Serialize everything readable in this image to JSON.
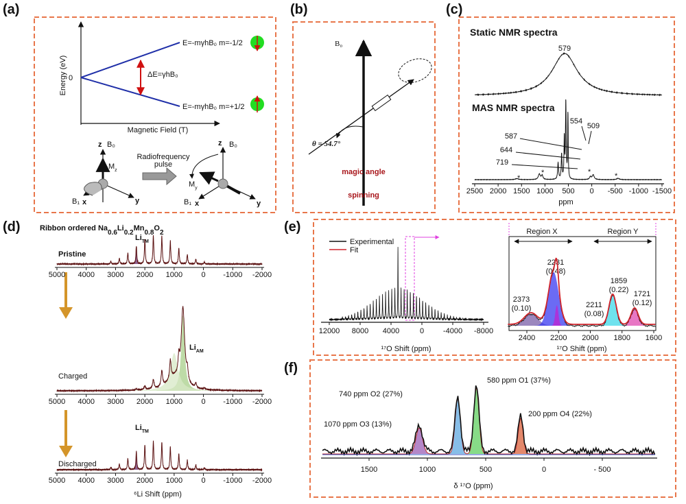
{
  "a": {
    "label": "(a)",
    "energy_axis": "Energy (eV)",
    "zero": "0",
    "field_axis": "Magnetic Field (T)",
    "upper_level": "E=-mγhB₀  m=-1/2",
    "lower_level": "E=-mγhB₀  m=+1/2",
    "gap": "ΔE=γhB₀",
    "pulse": [
      "Radiofrequency",
      "pulse"
    ],
    "before": {
      "z": "z",
      "b0": "B₀",
      "m": [
        "M",
        "z"
      ],
      "b1": "B₁",
      "x": "x",
      "y": "y"
    },
    "after": {
      "z": "z",
      "b0": "B₀",
      "m": [
        "M",
        "y"
      ],
      "b1": "B₁",
      "x": "x",
      "y": "y"
    }
  },
  "b": {
    "label": "(b)",
    "field": "B₀",
    "angle": "θ = 54.7°",
    "caption": [
      "magic angle",
      "spinning"
    ]
  },
  "c": {
    "label": "(c)",
    "static_title": "Static NMR spectra",
    "static_peak": "579",
    "mas_title": "MAS NMR spectra",
    "mas_peaks": [
      "554",
      "509",
      "587",
      "644",
      "719"
    ],
    "sidebands": [
      "*",
      "*",
      "*",
      "*"
    ],
    "ticks": [
      "2500",
      "2000",
      "1500",
      "1000",
      "500",
      "0",
      "-500",
      "-1000",
      "-1500"
    ],
    "axis_label": "ppm"
  },
  "d": {
    "label": "(d)",
    "title": [
      {
        "text": "Ribbon ordered Na"
      },
      {
        "text": "0.6",
        "sub": true
      },
      {
        "text": "Li"
      },
      {
        "text": "0.2",
        "sub": true
      },
      {
        "text": "Mn"
      },
      {
        "text": "0.8",
        "sub": true
      },
      {
        "text": "O"
      },
      {
        "text": "2",
        "sub": true
      }
    ],
    "spectra": [
      "Pristine",
      "Charged",
      "Discharged"
    ],
    "li_tm": [
      "Li",
      "TM"
    ],
    "li_am": [
      "Li",
      "AM"
    ],
    "ticks": [
      "5000",
      "4000",
      "3000",
      "2000",
      "1000",
      "0",
      "-1000",
      "-2000"
    ],
    "axis_label": "⁶Li Shift (ppm)"
  },
  "e": {
    "label": "(e)",
    "legend": [
      "Experimental",
      "Fit"
    ],
    "left_ticks": [
      "12000",
      "8000",
      "4000",
      "0",
      "-4000",
      "-8000"
    ],
    "axis_label": "¹⁷O Shift (ppm)",
    "regions": [
      "Region X",
      "Region Y"
    ],
    "peaks": [
      [
        "2373",
        "(0.10)"
      ],
      [
        "2231",
        "(0.48)"
      ],
      [
        "2211",
        "(0.08)"
      ],
      [
        "1859",
        "(0.22)"
      ],
      [
        "1721",
        "(0.12)"
      ]
    ],
    "right_ticks": [
      "2400",
      "2200",
      "2000",
      "1800",
      "1600"
    ]
  },
  "f": {
    "label": "(f)",
    "peaks": [
      "1070 ppm O3 (13%)",
      "740 ppm O2 (27%)",
      "580 ppm O1 (37%)",
      "200 ppm O4 (22%)"
    ],
    "ticks": [
      "1500",
      "1000",
      "500",
      "0",
      "- 500"
    ],
    "axis_label": "δ ¹⁷O (ppm)"
  }
}
